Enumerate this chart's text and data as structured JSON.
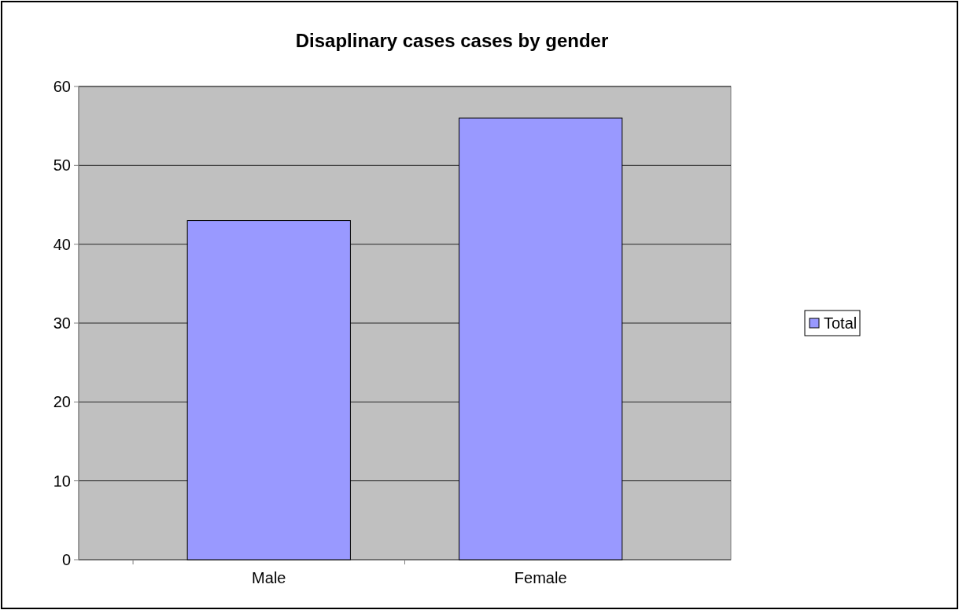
{
  "chart_data": {
    "type": "bar",
    "title": "Disaplinary cases cases by gender",
    "categories": [
      "Male",
      "Female"
    ],
    "series": [
      {
        "name": "Total",
        "color": "#9999ff",
        "values": [
          43,
          56
        ]
      }
    ],
    "ylim": [
      0,
      60
    ],
    "yticks": [
      0,
      10,
      20,
      30,
      40,
      50,
      60
    ],
    "grid": "y",
    "legend": "right"
  }
}
